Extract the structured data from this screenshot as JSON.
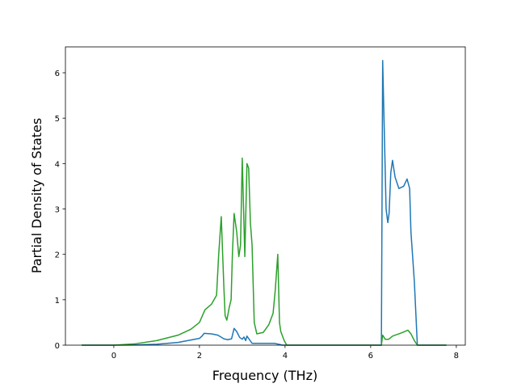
{
  "chart_data": {
    "type": "line",
    "x_label": "Frequency (THz)",
    "y_label": "Partial Density of States",
    "xlim": [
      -1.13,
      8.21
    ],
    "ylim": [
      0,
      6.57
    ],
    "xticks": [
      0,
      2,
      4,
      6,
      8
    ],
    "yticks": [
      0,
      1,
      2,
      3,
      4,
      5,
      6
    ],
    "series": [
      {
        "color": "#1f77b4",
        "x": [
          -0.75,
          0,
          0.5,
          1,
          1.5,
          2,
          2.06,
          2.11,
          2.28,
          2.43,
          2.57,
          2.66,
          2.75,
          2.81,
          2.87,
          2.94,
          3.0,
          3.04,
          3.08,
          3.11,
          3.17,
          3.23,
          3.75,
          3.85,
          3.94,
          6.25,
          6.28,
          6.36,
          6.4,
          6.43,
          6.47,
          6.51,
          6.57,
          6.66,
          6.77,
          6.85,
          6.91,
          6.94,
          7.02,
          7.09,
          7.77
        ],
        "values": [
          0,
          0,
          0.005,
          0.02,
          0.06,
          0.15,
          0.2,
          0.26,
          0.25,
          0.22,
          0.14,
          0.12,
          0.14,
          0.37,
          0.3,
          0.17,
          0.13,
          0.18,
          0.1,
          0.2,
          0.12,
          0.04,
          0.04,
          0.02,
          0,
          0,
          6.27,
          3.0,
          2.7,
          2.9,
          3.8,
          4.07,
          3.7,
          3.45,
          3.5,
          3.66,
          3.45,
          2.5,
          1.4,
          0,
          0
        ]
      },
      {
        "color": "#2ca02c",
        "x": [
          -0.75,
          0,
          0.5,
          1,
          1.5,
          1.8,
          2.0,
          2.13,
          2.28,
          2.4,
          2.45,
          2.51,
          2.57,
          2.6,
          2.64,
          2.7,
          2.74,
          2.77,
          2.81,
          2.87,
          2.92,
          2.96,
          3.0,
          3.06,
          3.11,
          3.15,
          3.19,
          3.23,
          3.28,
          3.34,
          3.49,
          3.62,
          3.72,
          3.77,
          3.83,
          3.87,
          3.9,
          3.98,
          4.04,
          6.25,
          6.28,
          6.34,
          6.42,
          6.51,
          6.72,
          6.87,
          6.94,
          7.02,
          7.09,
          7.77
        ],
        "values": [
          0,
          0,
          0.03,
          0.1,
          0.22,
          0.35,
          0.5,
          0.78,
          0.9,
          1.1,
          2.0,
          2.83,
          1.3,
          0.65,
          0.55,
          0.85,
          1.0,
          2.0,
          2.9,
          2.5,
          1.95,
          2.2,
          4.12,
          1.95,
          4.0,
          3.9,
          2.7,
          2.2,
          0.5,
          0.25,
          0.28,
          0.45,
          0.7,
          1.2,
          2.0,
          0.5,
          0.3,
          0.1,
          0,
          0,
          0.22,
          0.13,
          0.13,
          0.2,
          0.27,
          0.33,
          0.25,
          0.1,
          0,
          0
        ]
      }
    ]
  }
}
